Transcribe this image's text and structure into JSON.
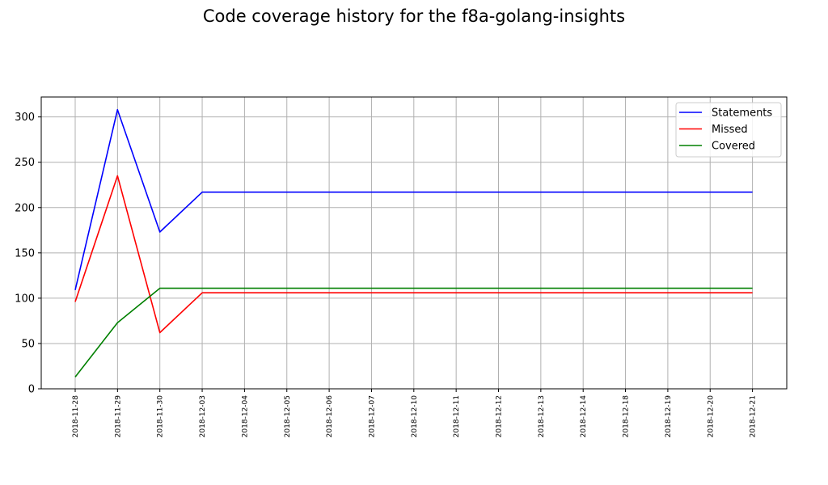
{
  "chart_data": {
    "type": "line",
    "title": "Code coverage history for the f8a-golang-insights",
    "xlabel": "",
    "ylabel": "",
    "ylim": [
      0,
      322
    ],
    "y_ticks": [
      0,
      50,
      100,
      150,
      200,
      250,
      300
    ],
    "grid": true,
    "legend_position": "top-right",
    "categories": [
      "2018-11-28",
      "2018-11-29",
      "2018-11-30",
      "2018-12-03",
      "2018-12-04",
      "2018-12-05",
      "2018-12-06",
      "2018-12-07",
      "2018-12-10",
      "2018-12-11",
      "2018-12-12",
      "2018-12-13",
      "2018-12-14",
      "2018-12-18",
      "2018-12-19",
      "2018-12-20",
      "2018-12-21"
    ],
    "series": [
      {
        "name": "Statements",
        "color": "#0000ff",
        "values": [
          109,
          308,
          173,
          217,
          217,
          217,
          217,
          217,
          217,
          217,
          217,
          217,
          217,
          217,
          217,
          217,
          217
        ]
      },
      {
        "name": "Missed",
        "color": "#ff0000",
        "values": [
          96,
          235,
          62,
          106,
          106,
          106,
          106,
          106,
          106,
          106,
          106,
          106,
          106,
          106,
          106,
          106,
          106
        ]
      },
      {
        "name": "Covered",
        "color": "#008000",
        "values": [
          13,
          73,
          111,
          111,
          111,
          111,
          111,
          111,
          111,
          111,
          111,
          111,
          111,
          111,
          111,
          111,
          111
        ]
      }
    ]
  }
}
